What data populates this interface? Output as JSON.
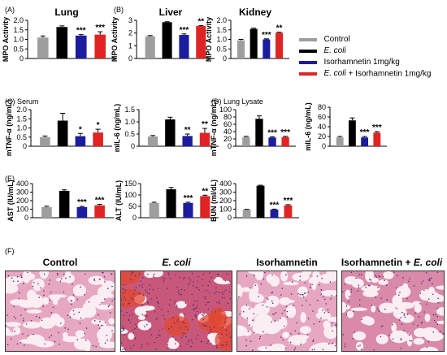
{
  "legend": {
    "entries": [
      {
        "label": "Control",
        "color": "#9e9e9e",
        "style": "normal"
      },
      {
        "label": "E. coli",
        "color": "#000000",
        "style": "italic"
      },
      {
        "label": "Isorhamnetin 1mg/kg",
        "color": "#1c1c9e",
        "style": "normal"
      },
      {
        "label": "E. coli + Isorhamnetin 1mg/kg",
        "color": "#e02424",
        "style": "mixed",
        "italic_part": "E. coli",
        "rest_part": " + Isorhamnetin 1mg/kg"
      }
    ]
  },
  "sections": {
    "c_title": "(C) Serum",
    "d_title": "(D) Lung Lysate",
    "e_letter": "(E)",
    "f_letter": "(F)"
  },
  "chart_data": [
    {
      "type": "bar",
      "letter": "(A)",
      "title": "Lung",
      "ylabel": "MPO Activity",
      "ylim": [
        0,
        2.0
      ],
      "yticks": [
        "0",
        "0.5",
        "1.0",
        "1.5",
        "2.0"
      ],
      "categories": [
        "Control",
        "E. coli",
        "Isorhamnetin 1mg/kg",
        "E. coli + Isorhamnetin 1mg/kg"
      ],
      "values": [
        1.1,
        1.65,
        1.2,
        1.25
      ],
      "errors": [
        0.08,
        0.06,
        0.05,
        0.15
      ],
      "stars": [
        "",
        "",
        "***",
        "***"
      ]
    },
    {
      "type": "bar",
      "letter": "(B)",
      "title": "Liver",
      "ylabel": "MPO Activity",
      "ylim": [
        0,
        3
      ],
      "yticks": [
        "0",
        "1",
        "2",
        "3"
      ],
      "categories": [
        "Control",
        "E. coli",
        "Isorhamnetin 1mg/kg",
        "E. coli + Isorhamnetin 1mg/kg"
      ],
      "values": [
        1.75,
        2.85,
        1.85,
        2.55
      ],
      "errors": [
        0.05,
        0.04,
        0.08,
        0.04
      ],
      "stars": [
        "",
        "",
        "***",
        "**"
      ]
    },
    {
      "type": "bar",
      "title": "Kidney",
      "ylabel": "MPO Activity",
      "ylim": [
        0,
        2.0
      ],
      "yticks": [
        "0",
        "0.5",
        "1.0",
        "1.5",
        "2.0"
      ],
      "categories": [
        "Control",
        "E. coli",
        "Isorhamnetin 1mg/kg",
        "E. coli + Isorhamnetin 1mg/kg"
      ],
      "values": [
        0.95,
        1.55,
        1.0,
        1.35
      ],
      "errors": [
        0.05,
        0.04,
        0.03,
        0.03
      ],
      "stars": [
        "",
        "",
        "***",
        "**"
      ]
    },
    {
      "type": "bar",
      "ylabel": "mTNF-α (ng/mL)",
      "ylim": [
        0,
        2.0
      ],
      "yticks": [
        "0",
        "0.5",
        "1.0",
        "1.5",
        "2.0"
      ],
      "categories": [
        "Control",
        "E. coli",
        "Isorhamnetin 1mg/kg",
        "E. coli + Isorhamnetin 1mg/kg"
      ],
      "values": [
        0.5,
        1.4,
        0.55,
        0.75
      ],
      "errors": [
        0.06,
        0.4,
        0.15,
        0.18
      ],
      "stars": [
        "",
        "",
        "*",
        "*"
      ]
    },
    {
      "type": "bar",
      "ylabel": "mIL-6 (ng/mL)",
      "ylim": [
        0,
        1.5
      ],
      "yticks": [
        "0",
        "0.5",
        "1.0",
        "1.5"
      ],
      "categories": [
        "Control",
        "E. coli",
        "Isorhamnetin 1mg/kg",
        "E. coli + Isorhamnetin 1mg/kg"
      ],
      "values": [
        0.4,
        1.1,
        0.42,
        0.55
      ],
      "errors": [
        0.04,
        0.09,
        0.08,
        0.18
      ],
      "stars": [
        "",
        "",
        "**",
        "**"
      ]
    },
    {
      "type": "bar",
      "ylabel": "mTNF-α (ng/mL)",
      "ylim": [
        0,
        100
      ],
      "yticks": [
        "0",
        "20",
        "40",
        "60",
        "80",
        "100"
      ],
      "categories": [
        "Control",
        "E. coli",
        "Isorhamnetin 1mg/kg",
        "E. coli + Isorhamnetin 1mg/kg"
      ],
      "values": [
        25,
        75,
        24,
        25
      ],
      "errors": [
        2,
        8,
        2,
        2
      ],
      "stars": [
        "",
        "",
        "***",
        "***"
      ]
    },
    {
      "type": "bar",
      "ylabel": "mIL-6 (ng/mL)",
      "ylim": [
        0,
        80
      ],
      "yticks": [
        "0",
        "20",
        "40",
        "60",
        "80"
      ],
      "categories": [
        "Control",
        "E. coli",
        "Isorhamnetin 1mg/kg",
        "E. coli + Isorhamnetin 1mg/kg"
      ],
      "values": [
        18,
        53,
        18,
        28
      ],
      "errors": [
        2,
        5,
        2,
        2
      ],
      "stars": [
        "",
        "",
        "***",
        "***"
      ]
    },
    {
      "type": "bar",
      "ylabel": "AST (IU/mL)",
      "ylim": [
        0,
        400
      ],
      "yticks": [
        "0",
        "100",
        "200",
        "300",
        "400"
      ],
      "categories": [
        "Control",
        "E. coli",
        "Isorhamnetin 1mg/kg",
        "E. coli + Isorhamnetin 1mg/kg"
      ],
      "values": [
        125,
        315,
        125,
        145
      ],
      "errors": [
        10,
        12,
        8,
        12
      ],
      "stars": [
        "",
        "",
        "***",
        "***"
      ]
    },
    {
      "type": "bar",
      "ylabel": "ALT (IU/mL)",
      "ylim": [
        0,
        150
      ],
      "yticks": [
        "0",
        "50",
        "100",
        "150"
      ],
      "categories": [
        "Control",
        "E. coli",
        "Isorhamnetin 1mg/kg",
        "E. coli + Isorhamnetin 1mg/kg"
      ],
      "values": [
        65,
        125,
        65,
        95
      ],
      "errors": [
        3,
        8,
        3,
        4
      ],
      "stars": [
        "",
        "",
        "***",
        "**"
      ]
    },
    {
      "type": "bar",
      "ylabel": "BUN (ml/dL)",
      "ylim": [
        0,
        400
      ],
      "yticks": [
        "0",
        "100",
        "200",
        "300",
        "400"
      ],
      "categories": [
        "Control",
        "E. coli",
        "Isorhamnetin 1mg/kg",
        "E. coli + Isorhamnetin 1mg/kg"
      ],
      "values": [
        95,
        375,
        95,
        145
      ],
      "errors": [
        4,
        6,
        6,
        8
      ],
      "stars": [
        "",
        "",
        "***",
        "***"
      ]
    }
  ],
  "histology": [
    {
      "label": "Control",
      "style": "normal",
      "tone": "normal"
    },
    {
      "label": "E. coli",
      "style": "italic",
      "tone": "inflamed"
    },
    {
      "label": "Isorhamnetin",
      "style": "normal",
      "tone": "normal"
    },
    {
      "label": "Isorhamnetin + E. coli",
      "style": "mixed",
      "plain_part": "Isorhamnetin + ",
      "italic_part": "E. coli",
      "tone": "mild"
    }
  ]
}
